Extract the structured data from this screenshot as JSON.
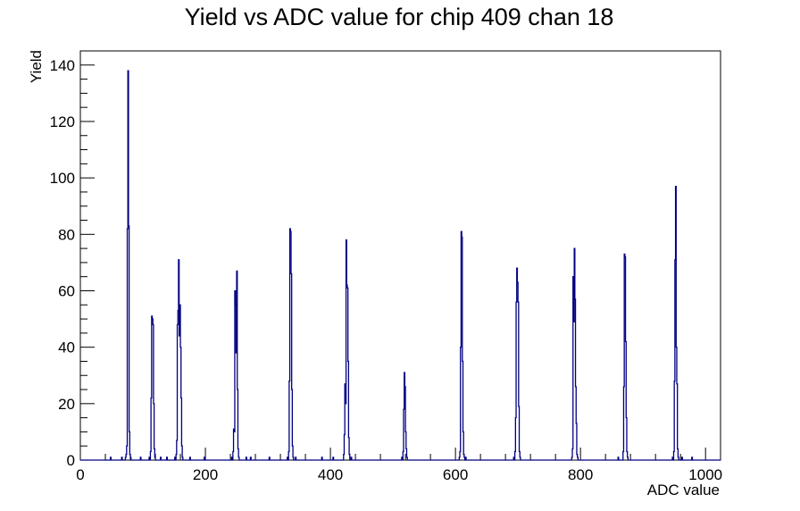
{
  "chart_data": {
    "type": "histogram",
    "title": "Yield vs ADC value for chip 409 chan 18",
    "xlabel": "ADC value",
    "ylabel": "Yield",
    "xlim": [
      0,
      1024
    ],
    "ylim": [
      0,
      145
    ],
    "x_ticks": [
      0,
      200,
      400,
      600,
      800,
      1000
    ],
    "y_ticks": [
      0,
      20,
      40,
      60,
      80,
      100,
      120,
      140
    ],
    "grid": false,
    "legend": "none",
    "line_color": "#000080",
    "bin_width": 1,
    "bins": [
      [
        48,
        1
      ],
      [
        66,
        1
      ],
      [
        72,
        1
      ],
      [
        73,
        2
      ],
      [
        74,
        5
      ],
      [
        75,
        82
      ],
      [
        76,
        138
      ],
      [
        77,
        83
      ],
      [
        78,
        10
      ],
      [
        79,
        2
      ],
      [
        80,
        1
      ],
      [
        96,
        1
      ],
      [
        110,
        1
      ],
      [
        112,
        3
      ],
      [
        113,
        22
      ],
      [
        114,
        51
      ],
      [
        115,
        50
      ],
      [
        116,
        48
      ],
      [
        117,
        20
      ],
      [
        118,
        4
      ],
      [
        119,
        1
      ],
      [
        128,
        1
      ],
      [
        138,
        1
      ],
      [
        151,
        1
      ],
      [
        153,
        2
      ],
      [
        154,
        7
      ],
      [
        155,
        48
      ],
      [
        156,
        53
      ],
      [
        157,
        71
      ],
      [
        158,
        44
      ],
      [
        159,
        55
      ],
      [
        160,
        40
      ],
      [
        161,
        22
      ],
      [
        162,
        5
      ],
      [
        163,
        1
      ],
      [
        175,
        1
      ],
      [
        198,
        1
      ],
      [
        242,
        1
      ],
      [
        244,
        3
      ],
      [
        245,
        11
      ],
      [
        246,
        10
      ],
      [
        247,
        60
      ],
      [
        248,
        55
      ],
      [
        249,
        38
      ],
      [
        250,
        67
      ],
      [
        251,
        25
      ],
      [
        252,
        4
      ],
      [
        253,
        1
      ],
      [
        265,
        1
      ],
      [
        272,
        1
      ],
      [
        302,
        1
      ],
      [
        331,
        1
      ],
      [
        333,
        3
      ],
      [
        334,
        28
      ],
      [
        335,
        82
      ],
      [
        336,
        81
      ],
      [
        337,
        66
      ],
      [
        338,
        25
      ],
      [
        339,
        5
      ],
      [
        340,
        1
      ],
      [
        344,
        1
      ],
      [
        386,
        1
      ],
      [
        404,
        1
      ],
      [
        421,
        2
      ],
      [
        422,
        9
      ],
      [
        423,
        27
      ],
      [
        424,
        20
      ],
      [
        425,
        78
      ],
      [
        426,
        62
      ],
      [
        427,
        61
      ],
      [
        428,
        35
      ],
      [
        429,
        8
      ],
      [
        430,
        2
      ],
      [
        433,
        1
      ],
      [
        514,
        1
      ],
      [
        516,
        3
      ],
      [
        517,
        18
      ],
      [
        518,
        31
      ],
      [
        519,
        26
      ],
      [
        520,
        10
      ],
      [
        521,
        4
      ],
      [
        522,
        1
      ],
      [
        606,
        1
      ],
      [
        607,
        3
      ],
      [
        608,
        40
      ],
      [
        609,
        81
      ],
      [
        610,
        79
      ],
      [
        611,
        35
      ],
      [
        612,
        10
      ],
      [
        613,
        2
      ],
      [
        614,
        1
      ],
      [
        616,
        1
      ],
      [
        693,
        1
      ],
      [
        695,
        3
      ],
      [
        696,
        15
      ],
      [
        697,
        56
      ],
      [
        698,
        68
      ],
      [
        699,
        63
      ],
      [
        700,
        56
      ],
      [
        701,
        19
      ],
      [
        702,
        3
      ],
      [
        703,
        1
      ],
      [
        786,
        1
      ],
      [
        787,
        4
      ],
      [
        788,
        65
      ],
      [
        789,
        49
      ],
      [
        790,
        75
      ],
      [
        791,
        57
      ],
      [
        792,
        26
      ],
      [
        793,
        13
      ],
      [
        794,
        2
      ],
      [
        795,
        1
      ],
      [
        860,
        1
      ],
      [
        868,
        3
      ],
      [
        869,
        26
      ],
      [
        870,
        73
      ],
      [
        871,
        72
      ],
      [
        872,
        42
      ],
      [
        873,
        15
      ],
      [
        874,
        3
      ],
      [
        875,
        1
      ],
      [
        947,
        1
      ],
      [
        949,
        3
      ],
      [
        950,
        28
      ],
      [
        951,
        71
      ],
      [
        952,
        97
      ],
      [
        953,
        40
      ],
      [
        954,
        27
      ],
      [
        955,
        4
      ],
      [
        956,
        1
      ],
      [
        962,
        1
      ],
      [
        978,
        1
      ]
    ]
  }
}
